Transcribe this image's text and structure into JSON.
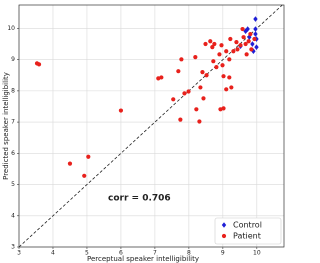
{
  "chart_data": {
    "type": "scatter",
    "x_label": "Perceptual speaker intelligibility",
    "y_label": "Predicted speaker intelligibility",
    "annotation": "corr = 0.706",
    "xlim": [
      3,
      10.8
    ],
    "ylim": [
      3,
      10.75
    ],
    "xticks": [
      3,
      4,
      5,
      6,
      7,
      8,
      9,
      10
    ],
    "yticks": [
      3,
      4,
      5,
      6,
      7,
      8,
      9,
      10
    ],
    "grid": true,
    "legend": "lower right",
    "series": [
      {
        "name": "Control",
        "color": "#1f1fd6",
        "marker": "diamond",
        "x": [
          9.67,
          9.73,
          9.78,
          9.87,
          9.96,
          9.96,
          9.99,
          9.99,
          9.9,
          9.52,
          9.96
        ],
        "values": [
          9.91,
          9.98,
          9.72,
          9.5,
          10.3,
          9.98,
          9.66,
          9.4,
          9.27,
          9.43,
          9.82
        ]
      },
      {
        "name": "Patient",
        "color": "#e8211c",
        "marker": "circle",
        "x": [
          3.53,
          3.59,
          4.5,
          5.04,
          4.92,
          6.0,
          7.1,
          7.19,
          7.69,
          7.78,
          7.87,
          7.99,
          7.75,
          7.54,
          8.22,
          8.31,
          8.43,
          8.34,
          8.4,
          8.52,
          8.19,
          8.49,
          8.69,
          8.72,
          8.81,
          8.9,
          8.96,
          8.99,
          8.93,
          9.02,
          9.1,
          9.02,
          9.19,
          9.25,
          9.19,
          9.31,
          9.4,
          9.52,
          9.61,
          9.7,
          9.67,
          9.76,
          9.84,
          9.93,
          9.1,
          8.75,
          8.63,
          9.22,
          9.43,
          9.81,
          9.58
        ],
        "values": [
          8.88,
          8.85,
          5.67,
          5.89,
          5.28,
          7.37,
          8.4,
          8.43,
          8.63,
          9.01,
          7.92,
          7.98,
          7.08,
          7.73,
          7.41,
          7.02,
          7.76,
          8.11,
          8.6,
          8.5,
          9.08,
          9.5,
          9.4,
          8.95,
          8.76,
          9.17,
          9.46,
          8.82,
          7.41,
          7.44,
          8.05,
          8.47,
          8.43,
          8.11,
          9.01,
          9.27,
          9.56,
          9.46,
          9.72,
          9.17,
          9.5,
          9.59,
          9.33,
          9.66,
          9.27,
          9.5,
          9.59,
          9.66,
          9.33,
          9.82,
          9.98
        ]
      }
    ]
  }
}
